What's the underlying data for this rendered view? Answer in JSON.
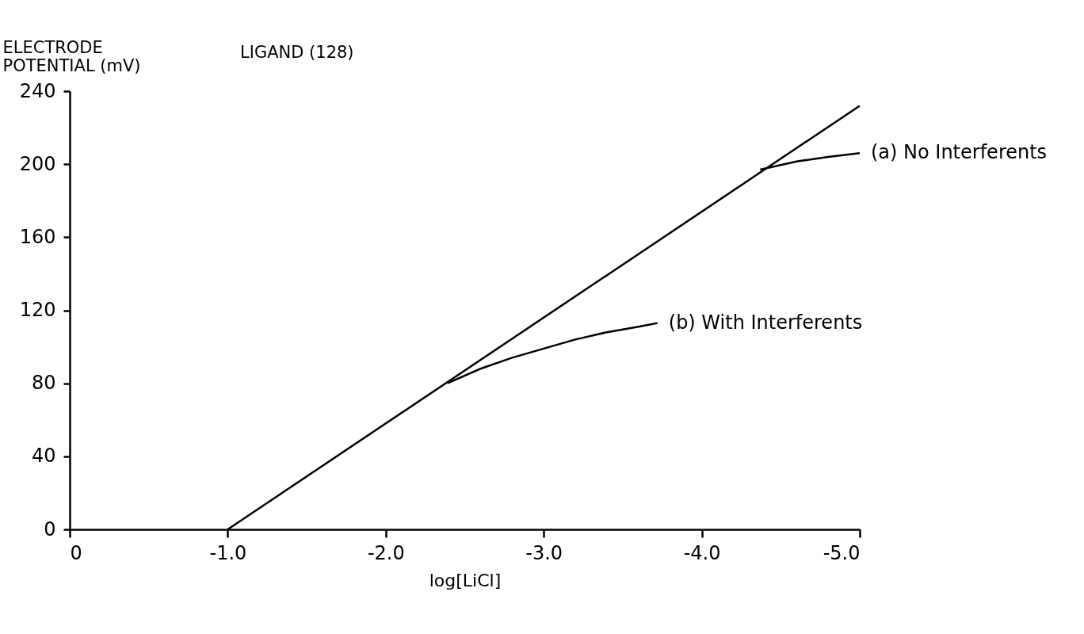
{
  "chart_data": {
    "type": "line",
    "title": "LIGAND (128)",
    "xlabel": "log[LiCl]",
    "ylabel": "ELECTRODE POTENTIAL (mV)",
    "xlim": [
      0,
      -5.0
    ],
    "xticks": [
      0,
      {
        "value": -1.0,
        "label": "-1.0"
      },
      {
        "value": -2.0,
        "label": "-2.0"
      },
      {
        "value": -3.0,
        "label": "-3.0"
      },
      {
        "value": -4.0,
        "label": "-4.0"
      },
      {
        "value": -5.0,
        "label": "-5.0"
      }
    ],
    "ylim": [
      0,
      240
    ],
    "yticks": [
      0,
      40,
      80,
      120,
      160,
      200,
      240
    ],
    "grid": false,
    "marker": "none",
    "line_style": "solid",
    "series": [
      {
        "color": "#000000",
        "x": [
          -1.0,
          -5.0
        ],
        "values": [
          0,
          232
        ]
      },
      {
        "name": "(a) No Interferents",
        "color": "#000000",
        "x": [
          -4.37,
          -4.6,
          -4.8,
          -5.0
        ],
        "values": [
          197,
          201.5,
          204,
          206
        ]
      },
      {
        "name": "(b) With Interferents",
        "color": "#000000",
        "x": [
          -2.39,
          -2.6,
          -2.8,
          -3.0,
          -3.2,
          -3.4,
          -3.6,
          -3.72
        ],
        "values": [
          80,
          88,
          94,
          99,
          104,
          108,
          111,
          113
        ]
      }
    ]
  }
}
